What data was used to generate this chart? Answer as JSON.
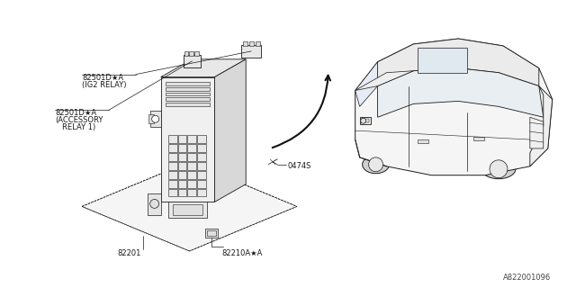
{
  "background_color": "#ffffff",
  "line_color": "#1a1a1a",
  "text_color": "#1a1a1a",
  "diagram_ref": "A822001096",
  "lw": 0.6,
  "figsize": [
    6.4,
    3.2
  ],
  "dpi": 100,
  "labels": {
    "ig2_id": "82501D★A",
    "ig2_label": "(IG2 RELAY)",
    "acc_id": "82501D★A",
    "acc_label1": "(ACCESSORY",
    "acc_label2": " RELAY 1)",
    "part_82201": "82201",
    "part_82210": "82210A★A",
    "part_screw": "0474S",
    "ref": "A822001096"
  }
}
